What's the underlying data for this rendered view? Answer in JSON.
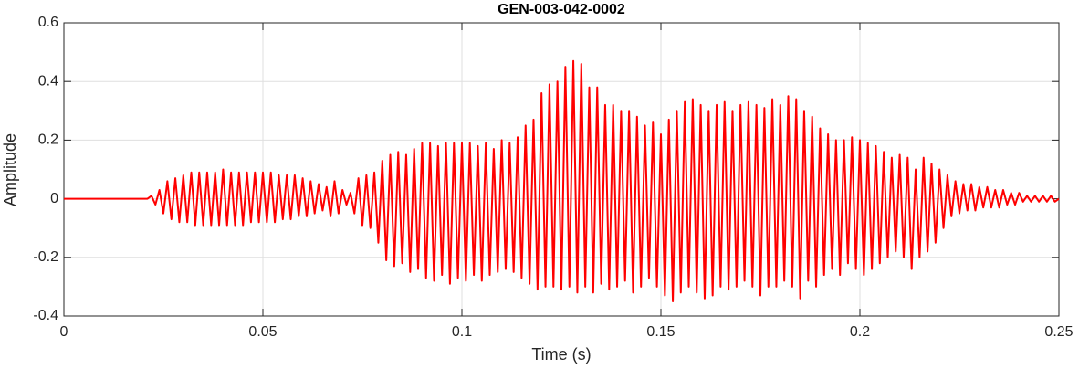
{
  "chart_data": {
    "type": "line",
    "title": "GEN-003-042-0002",
    "x_label": "Time (s)",
    "y_label": "Amplitude",
    "color": "#ff0000",
    "grid": true,
    "xlim": [
      0,
      0.25
    ],
    "ylim": [
      -0.4,
      0.6
    ],
    "xticks": [
      0,
      0.05,
      0.1,
      0.15,
      0.2,
      0.25
    ],
    "yticks": [
      -0.4,
      -0.2,
      0,
      0.2,
      0.4,
      0.6
    ],
    "x": [
      0,
      0.001,
      0.002,
      0.003,
      0.004,
      0.005,
      0.006,
      0.007,
      0.008,
      0.009,
      0.01,
      0.011,
      0.012,
      0.013,
      0.014,
      0.015,
      0.016,
      0.017,
      0.018,
      0.019,
      0.02,
      0.021,
      0.022,
      0.023,
      0.024,
      0.025,
      0.026,
      0.027,
      0.028,
      0.029,
      0.03,
      0.031,
      0.032,
      0.033,
      0.034,
      0.035,
      0.036,
      0.037,
      0.038,
      0.039,
      0.04,
      0.041,
      0.042,
      0.043,
      0.044,
      0.045,
      0.046,
      0.047,
      0.048,
      0.049,
      0.05,
      0.051,
      0.052,
      0.053,
      0.054,
      0.055,
      0.056,
      0.057,
      0.058,
      0.059,
      0.06,
      0.061,
      0.062,
      0.063,
      0.064,
      0.065,
      0.066,
      0.067,
      0.068,
      0.069,
      0.07,
      0.071,
      0.072,
      0.073,
      0.074,
      0.075,
      0.076,
      0.077,
      0.078,
      0.079,
      0.08,
      0.081,
      0.082,
      0.083,
      0.084,
      0.085,
      0.086,
      0.087,
      0.088,
      0.089,
      0.09,
      0.091,
      0.092,
      0.093,
      0.094,
      0.095,
      0.096,
      0.097,
      0.098,
      0.099,
      0.1,
      0.101,
      0.102,
      0.103,
      0.104,
      0.105,
      0.106,
      0.107,
      0.108,
      0.109,
      0.11,
      0.111,
      0.112,
      0.113,
      0.114,
      0.115,
      0.116,
      0.117,
      0.118,
      0.119,
      0.12,
      0.121,
      0.122,
      0.123,
      0.124,
      0.125,
      0.126,
      0.127,
      0.128,
      0.129,
      0.13,
      0.131,
      0.132,
      0.133,
      0.134,
      0.135,
      0.136,
      0.137,
      0.138,
      0.139,
      0.14,
      0.141,
      0.142,
      0.143,
      0.144,
      0.145,
      0.146,
      0.147,
      0.148,
      0.149,
      0.15,
      0.151,
      0.152,
      0.153,
      0.154,
      0.155,
      0.156,
      0.157,
      0.158,
      0.159,
      0.16,
      0.161,
      0.162,
      0.163,
      0.164,
      0.165,
      0.166,
      0.167,
      0.168,
      0.169,
      0.17,
      0.171,
      0.172,
      0.173,
      0.174,
      0.175,
      0.176,
      0.177,
      0.178,
      0.179,
      0.18,
      0.181,
      0.182,
      0.183,
      0.184,
      0.185,
      0.186,
      0.187,
      0.188,
      0.189,
      0.19,
      0.191,
      0.192,
      0.193,
      0.194,
      0.195,
      0.196,
      0.197,
      0.198,
      0.199,
      0.2,
      0.201,
      0.202,
      0.203,
      0.204,
      0.205,
      0.206,
      0.207,
      0.208,
      0.209,
      0.21,
      0.211,
      0.212,
      0.213,
      0.214,
      0.215,
      0.216,
      0.217,
      0.218,
      0.219,
      0.22,
      0.221,
      0.222,
      0.223,
      0.224,
      0.225,
      0.226,
      0.227,
      0.228,
      0.229,
      0.23,
      0.231,
      0.232,
      0.233,
      0.234,
      0.235,
      0.236,
      0.237,
      0.238,
      0.239,
      0.24,
      0.241,
      0.242,
      0.243,
      0.244,
      0.245,
      0.246,
      0.247,
      0.248,
      0.249,
      0.25
    ],
    "values": [
      0,
      0,
      0,
      0,
      0,
      0,
      0,
      0,
      0,
      0,
      0,
      0,
      0,
      0,
      0,
      0,
      0,
      0,
      0,
      0,
      0,
      0,
      0.01,
      -0.02,
      0.03,
      -0.05,
      0.06,
      -0.07,
      0.07,
      -0.08,
      0.08,
      -0.08,
      0.09,
      -0.09,
      0.09,
      -0.09,
      0.09,
      -0.09,
      0.09,
      -0.09,
      0.1,
      -0.09,
      0.09,
      -0.09,
      0.09,
      -0.09,
      0.09,
      -0.08,
      0.09,
      -0.08,
      0.09,
      -0.08,
      0.09,
      -0.08,
      0.08,
      -0.07,
      0.08,
      -0.07,
      0.08,
      -0.06,
      0.07,
      -0.06,
      0.06,
      -0.05,
      0.05,
      -0.04,
      0.04,
      -0.06,
      0.06,
      -0.05,
      0.03,
      -0.02,
      0.02,
      -0.05,
      0.07,
      -0.09,
      0.08,
      -0.1,
      0.09,
      -0.15,
      0.13,
      -0.21,
      0.15,
      -0.23,
      0.16,
      -0.22,
      0.15,
      -0.25,
      0.17,
      -0.24,
      0.19,
      -0.27,
      0.19,
      -0.28,
      0.18,
      -0.26,
      0.19,
      -0.29,
      0.19,
      -0.27,
      0.19,
      -0.28,
      0.19,
      -0.26,
      0.18,
      -0.28,
      0.19,
      -0.26,
      0.17,
      -0.25,
      0.2,
      -0.24,
      0.19,
      -0.25,
      0.21,
      -0.27,
      0.25,
      -0.29,
      0.27,
      -0.31,
      0.36,
      -0.3,
      0.39,
      -0.3,
      0.4,
      -0.31,
      0.45,
      -0.3,
      0.47,
      -0.32,
      0.46,
      -0.3,
      0.38,
      -0.32,
      0.38,
      -0.29,
      0.32,
      -0.31,
      0.32,
      -0.3,
      0.3,
      -0.28,
      0.3,
      -0.32,
      0.28,
      -0.3,
      0.25,
      -0.27,
      0.26,
      -0.3,
      0.22,
      -0.33,
      0.27,
      -0.35,
      0.3,
      -0.32,
      0.33,
      -0.3,
      0.34,
      -0.32,
      0.32,
      -0.34,
      0.3,
      -0.33,
      0.32,
      -0.3,
      0.33,
      -0.31,
      0.3,
      -0.3,
      0.32,
      -0.28,
      0.33,
      -0.3,
      0.32,
      -0.33,
      0.31,
      -0.3,
      0.34,
      -0.3,
      0.32,
      -0.28,
      0.35,
      -0.3,
      0.34,
      -0.34,
      0.3,
      -0.28,
      0.28,
      -0.3,
      0.24,
      -0.26,
      0.22,
      -0.24,
      0.2,
      -0.26,
      0.2,
      -0.22,
      0.21,
      -0.24,
      0.2,
      -0.26,
      0.19,
      -0.24,
      0.18,
      -0.22,
      0.16,
      -0.2,
      0.14,
      -0.18,
      0.15,
      -0.2,
      0.14,
      -0.24,
      0.1,
      -0.2,
      0.14,
      -0.18,
      0.12,
      -0.15,
      0.1,
      -0.1,
      0.08,
      -0.06,
      0.06,
      -0.05,
      0.05,
      -0.04,
      0.05,
      -0.04,
      0.04,
      -0.03,
      0.04,
      -0.03,
      0.03,
      -0.03,
      0.03,
      -0.02,
      0.02,
      -0.02,
      0.02,
      -0.01,
      0.01,
      -0.01,
      0.01,
      -0.01,
      0.01,
      -0.01,
      0.01,
      -0.01,
      0
    ]
  }
}
